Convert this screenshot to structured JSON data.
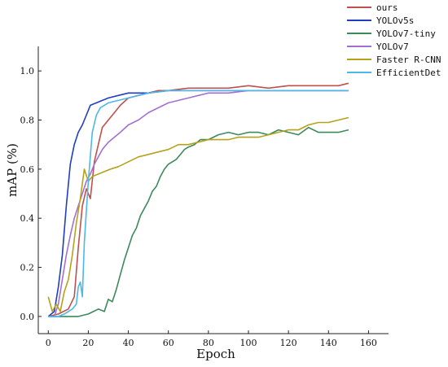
{
  "chart_data": {
    "type": "line",
    "xlabel": "Epoch",
    "ylabel": "mAP (%)",
    "xlim": [
      -5,
      170
    ],
    "ylim": [
      -0.07,
      1.1
    ],
    "xticks": [
      0,
      20,
      40,
      60,
      80,
      100,
      120,
      140,
      160
    ],
    "xtick_labels": [
      "0",
      "20",
      "40",
      "60",
      "80",
      "100",
      "120",
      "140",
      "160"
    ],
    "yticks": [
      0.0,
      0.2,
      0.4,
      0.6,
      0.8,
      1.0
    ],
    "ytick_labels": [
      "0.0",
      "0.2",
      "0.4",
      "0.6",
      "0.8",
      "1.0"
    ],
    "grid": false,
    "legend_position": "top-right, outside plot area",
    "series": [
      {
        "name": "ours",
        "color": "#c0504d",
        "points": [
          [
            0,
            0.0
          ],
          [
            5,
            0.01
          ],
          [
            10,
            0.03
          ],
          [
            13,
            0.08
          ],
          [
            15,
            0.28
          ],
          [
            17,
            0.45
          ],
          [
            19,
            0.52
          ],
          [
            21,
            0.48
          ],
          [
            23,
            0.63
          ],
          [
            25,
            0.7
          ],
          [
            27,
            0.77
          ],
          [
            30,
            0.8
          ],
          [
            33,
            0.83
          ],
          [
            36,
            0.86
          ],
          [
            40,
            0.89
          ],
          [
            45,
            0.9
          ],
          [
            50,
            0.91
          ],
          [
            55,
            0.92
          ],
          [
            60,
            0.92
          ],
          [
            70,
            0.93
          ],
          [
            80,
            0.93
          ],
          [
            90,
            0.93
          ],
          [
            100,
            0.94
          ],
          [
            110,
            0.93
          ],
          [
            120,
            0.94
          ],
          [
            130,
            0.94
          ],
          [
            140,
            0.94
          ],
          [
            145,
            0.94
          ],
          [
            150,
            0.95
          ]
        ]
      },
      {
        "name": "YOLOv5s",
        "color": "#1f3fbf",
        "points": [
          [
            0,
            0.0
          ],
          [
            3,
            0.02
          ],
          [
            5,
            0.12
          ],
          [
            7,
            0.25
          ],
          [
            9,
            0.45
          ],
          [
            11,
            0.62
          ],
          [
            13,
            0.7
          ],
          [
            15,
            0.75
          ],
          [
            17,
            0.78
          ],
          [
            19,
            0.82
          ],
          [
            21,
            0.86
          ],
          [
            24,
            0.87
          ],
          [
            27,
            0.88
          ],
          [
            30,
            0.89
          ],
          [
            35,
            0.9
          ],
          [
            40,
            0.91
          ],
          [
            50,
            0.91
          ],
          [
            60,
            0.92
          ],
          [
            70,
            0.92
          ],
          [
            80,
            0.92
          ],
          [
            90,
            0.92
          ],
          [
            100,
            0.92
          ],
          [
            110,
            0.92
          ],
          [
            120,
            0.92
          ],
          [
            130,
            0.92
          ],
          [
            140,
            0.92
          ],
          [
            150,
            0.92
          ]
        ]
      },
      {
        "name": "YOLOv7-tiny",
        "color": "#3b8a5a",
        "points": [
          [
            0,
            0.0
          ],
          [
            10,
            0.0
          ],
          [
            15,
            0.0
          ],
          [
            20,
            0.01
          ],
          [
            25,
            0.03
          ],
          [
            28,
            0.02
          ],
          [
            30,
            0.07
          ],
          [
            32,
            0.06
          ],
          [
            34,
            0.11
          ],
          [
            36,
            0.17
          ],
          [
            38,
            0.23
          ],
          [
            40,
            0.28
          ],
          [
            42,
            0.33
          ],
          [
            44,
            0.36
          ],
          [
            46,
            0.41
          ],
          [
            48,
            0.44
          ],
          [
            50,
            0.47
          ],
          [
            52,
            0.51
          ],
          [
            54,
            0.53
          ],
          [
            56,
            0.57
          ],
          [
            58,
            0.6
          ],
          [
            60,
            0.62
          ],
          [
            62,
            0.63
          ],
          [
            64,
            0.64
          ],
          [
            66,
            0.66
          ],
          [
            68,
            0.68
          ],
          [
            70,
            0.69
          ],
          [
            73,
            0.7
          ],
          [
            76,
            0.72
          ],
          [
            80,
            0.72
          ],
          [
            85,
            0.74
          ],
          [
            90,
            0.75
          ],
          [
            95,
            0.74
          ],
          [
            100,
            0.75
          ],
          [
            105,
            0.75
          ],
          [
            110,
            0.74
          ],
          [
            115,
            0.76
          ],
          [
            120,
            0.75
          ],
          [
            125,
            0.74
          ],
          [
            130,
            0.77
          ],
          [
            135,
            0.75
          ],
          [
            140,
            0.75
          ],
          [
            145,
            0.75
          ],
          [
            150,
            0.76
          ]
        ]
      },
      {
        "name": "YOLOv7",
        "color": "#a470d0",
        "points": [
          [
            0,
            0.0
          ],
          [
            3,
            0.0
          ],
          [
            5,
            0.05
          ],
          [
            7,
            0.15
          ],
          [
            9,
            0.25
          ],
          [
            11,
            0.33
          ],
          [
            13,
            0.4
          ],
          [
            15,
            0.45
          ],
          [
            17,
            0.5
          ],
          [
            19,
            0.55
          ],
          [
            21,
            0.58
          ],
          [
            23,
            0.62
          ],
          [
            25,
            0.65
          ],
          [
            27,
            0.68
          ],
          [
            30,
            0.71
          ],
          [
            33,
            0.73
          ],
          [
            36,
            0.75
          ],
          [
            40,
            0.78
          ],
          [
            45,
            0.8
          ],
          [
            50,
            0.83
          ],
          [
            55,
            0.85
          ],
          [
            60,
            0.87
          ],
          [
            65,
            0.88
          ],
          [
            70,
            0.89
          ],
          [
            75,
            0.9
          ],
          [
            80,
            0.91
          ],
          [
            90,
            0.91
          ],
          [
            100,
            0.92
          ],
          [
            110,
            0.92
          ],
          [
            120,
            0.92
          ],
          [
            130,
            0.92
          ],
          [
            140,
            0.92
          ],
          [
            150,
            0.92
          ]
        ]
      },
      {
        "name": "Faster R-CNN",
        "color": "#b5a21a",
        "points": [
          [
            0,
            0.08
          ],
          [
            2,
            0.02
          ],
          [
            4,
            0.05
          ],
          [
            6,
            0.02
          ],
          [
            8,
            0.1
          ],
          [
            10,
            0.15
          ],
          [
            12,
            0.25
          ],
          [
            14,
            0.38
          ],
          [
            16,
            0.48
          ],
          [
            18,
            0.6
          ],
          [
            20,
            0.55
          ],
          [
            22,
            0.57
          ],
          [
            25,
            0.58
          ],
          [
            28,
            0.59
          ],
          [
            31,
            0.6
          ],
          [
            35,
            0.61
          ],
          [
            40,
            0.63
          ],
          [
            45,
            0.65
          ],
          [
            50,
            0.66
          ],
          [
            55,
            0.67
          ],
          [
            60,
            0.68
          ],
          [
            65,
            0.7
          ],
          [
            70,
            0.7
          ],
          [
            75,
            0.71
          ],
          [
            80,
            0.72
          ],
          [
            85,
            0.72
          ],
          [
            90,
            0.72
          ],
          [
            95,
            0.73
          ],
          [
            100,
            0.73
          ],
          [
            105,
            0.73
          ],
          [
            110,
            0.74
          ],
          [
            115,
            0.75
          ],
          [
            120,
            0.76
          ],
          [
            125,
            0.76
          ],
          [
            130,
            0.78
          ],
          [
            135,
            0.79
          ],
          [
            140,
            0.79
          ],
          [
            145,
            0.8
          ],
          [
            150,
            0.81
          ]
        ]
      },
      {
        "name": "EfficientDet",
        "color": "#4bb8e8",
        "points": [
          [
            0,
            0.0
          ],
          [
            5,
            0.0
          ],
          [
            8,
            0.01
          ],
          [
            10,
            0.02
          ],
          [
            12,
            0.03
          ],
          [
            14,
            0.05
          ],
          [
            15,
            0.12
          ],
          [
            16,
            0.14
          ],
          [
            17,
            0.08
          ],
          [
            18,
            0.3
          ],
          [
            20,
            0.55
          ],
          [
            22,
            0.75
          ],
          [
            24,
            0.82
          ],
          [
            26,
            0.85
          ],
          [
            28,
            0.86
          ],
          [
            30,
            0.87
          ],
          [
            35,
            0.88
          ],
          [
            40,
            0.89
          ],
          [
            45,
            0.9
          ],
          [
            50,
            0.91
          ],
          [
            60,
            0.92
          ],
          [
            70,
            0.92
          ],
          [
            80,
            0.92
          ],
          [
            90,
            0.92
          ],
          [
            100,
            0.92
          ],
          [
            110,
            0.92
          ],
          [
            120,
            0.92
          ],
          [
            130,
            0.92
          ],
          [
            140,
            0.92
          ],
          [
            150,
            0.92
          ]
        ]
      }
    ]
  }
}
